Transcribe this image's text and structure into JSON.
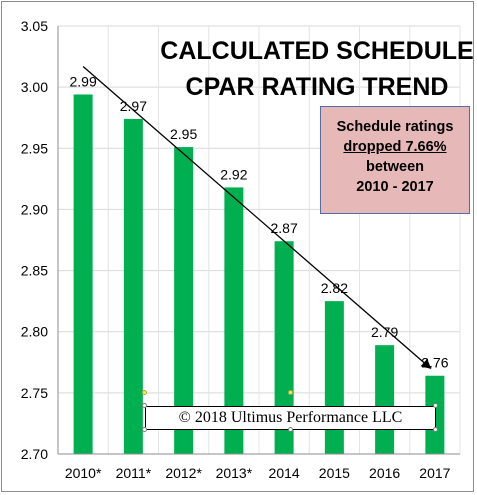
{
  "chart_data": {
    "type": "bar",
    "title": "CALCULATED SCHEDULE CPAR RATING TREND",
    "title_lines": [
      "CALCULATED SCHEDULE",
      "CPAR RATING TREND"
    ],
    "categories": [
      "2010*",
      "2011*",
      "2012*",
      "2013*",
      "2014",
      "2015",
      "2016",
      "2017"
    ],
    "values": [
      2.994,
      2.974,
      2.951,
      2.918,
      2.874,
      2.825,
      2.789,
      2.764
    ],
    "data_labels": [
      "2.99",
      "2.97",
      "2.95",
      "2.92",
      "2.87",
      "2.82",
      "2.79",
      "2.76"
    ],
    "ylim": [
      2.7,
      3.05
    ],
    "yticks": [
      "2.70",
      "2.75",
      "2.80",
      "2.85",
      "2.90",
      "2.95",
      "3.00",
      "3.05"
    ],
    "xlabel": "",
    "ylabel": "",
    "grid": true,
    "bar_color": "#00b050",
    "trend_arrow": true
  },
  "callout": {
    "line1": "Schedule ratings",
    "line2": "dropped 7.66%",
    "line3": "between",
    "line4": "2010 - 2017"
  },
  "copyright": "© 2018 Ultimus Performance LLC"
}
